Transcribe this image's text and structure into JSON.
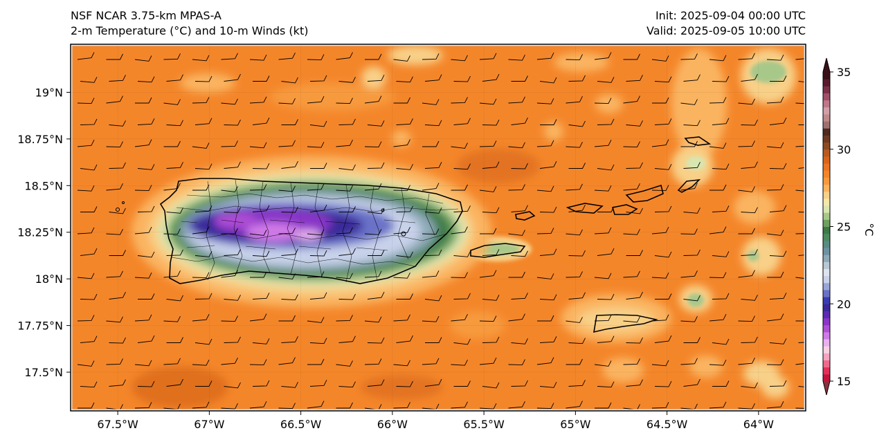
{
  "title": {
    "model": "NSF NCAR 3.75-km MPAS-A",
    "fields": "2-m Temperature (°C) and 10-m Winds (kt)",
    "init": "Init: 2025-09-04 00:00 UTC",
    "valid": "Valid: 2025-09-05 10:00 UTC"
  },
  "map": {
    "lon_range": [
      -67.75,
      -63.75
    ],
    "lat_range": [
      17.3,
      19.25
    ],
    "lon_ticks": [
      {
        "value": -67.5,
        "label": "67.5°W"
      },
      {
        "value": -67.0,
        "label": "67°W"
      },
      {
        "value": -66.5,
        "label": "66.5°W"
      },
      {
        "value": -66.0,
        "label": "66°W"
      },
      {
        "value": -65.5,
        "label": "65.5°W"
      },
      {
        "value": -65.0,
        "label": "65°W"
      },
      {
        "value": -64.5,
        "label": "64.5°W"
      },
      {
        "value": -64.0,
        "label": "64°W"
      }
    ],
    "lat_ticks": [
      {
        "value": 19.0,
        "label": "19°N"
      },
      {
        "value": 18.75,
        "label": "18.75°N"
      },
      {
        "value": 18.5,
        "label": "18.5°N"
      },
      {
        "value": 18.25,
        "label": "18.25°N"
      },
      {
        "value": 18.0,
        "label": "18°N"
      },
      {
        "value": 17.75,
        "label": "17.75°N"
      },
      {
        "value": 17.5,
        "label": "17.5°N"
      }
    ],
    "ocean_temp_c": 28,
    "wind_barb": "east ~10 kt"
  },
  "colorbar": {
    "label": "°C",
    "min": 15,
    "max": 35,
    "ticks": [
      {
        "value": 15,
        "label": "15"
      },
      {
        "value": 20,
        "label": "20"
      },
      {
        "value": 25,
        "label": "25"
      },
      {
        "value": 30,
        "label": "30"
      },
      {
        "value": 35,
        "label": "35"
      }
    ],
    "colors": [
      "#c2143c",
      "#e2305a",
      "#f06a8e",
      "#f4a3c0",
      "#f8d0e4",
      "#e8b0f0",
      "#d07ae8",
      "#b04ed6",
      "#8a34c8",
      "#5a2ab4",
      "#3a2a9a",
      "#3c3cb0",
      "#6a72c8",
      "#9aa6d8",
      "#c8d2ea",
      "#dde4ee",
      "#b8c8d4",
      "#8eaab8",
      "#6e92a0",
      "#5a8a86",
      "#4e8a5e",
      "#3c7a48",
      "#6ea060",
      "#a8c88a",
      "#d8e6b0",
      "#f4e8a8",
      "#f8d088",
      "#fab460",
      "#f79a3c",
      "#f4862a",
      "#ec7424",
      "#d8641c",
      "#b85a1e",
      "#8e4a22",
      "#6e3a22",
      "#4e2a20",
      "#a07070",
      "#c08a8a",
      "#d0a0a8",
      "#c07888",
      "#a05068",
      "#7a3048",
      "#5a1a2e",
      "#3a1018"
    ]
  }
}
